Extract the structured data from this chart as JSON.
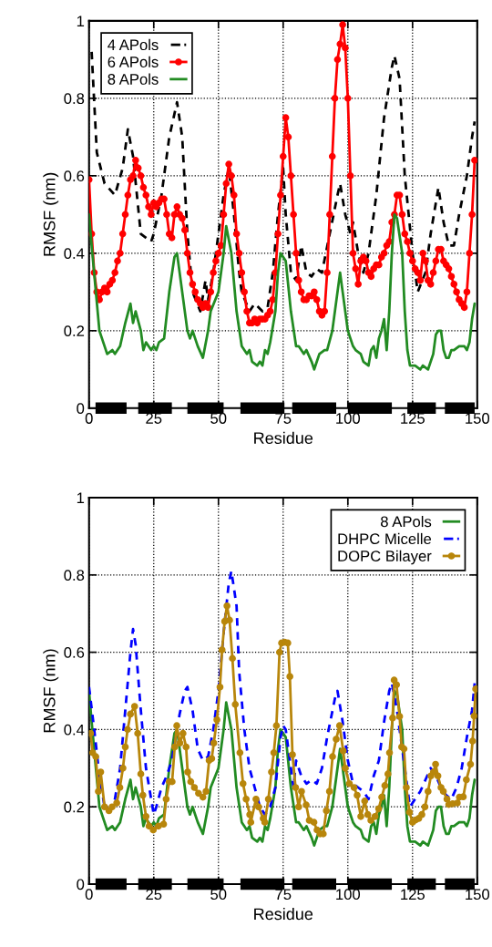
{
  "chart_data": [
    {
      "type": "line",
      "xlabel": "Residue",
      "ylabel": "RMSF (nm)",
      "xlim": [
        0,
        150
      ],
      "ylim": [
        0,
        1
      ],
      "xticks": [
        0,
        25,
        50,
        75,
        100,
        125,
        150
      ],
      "yticks": [
        0,
        0.2,
        0.4,
        0.6,
        0.8,
        1
      ],
      "grid": true,
      "legend": "top left",
      "series": [
        {
          "color": "#000000",
          "line_style": "solid",
          "marker": "none",
          "x": [
            2.5,
            14.5,
            16,
            19,
            32,
            35,
            38,
            52,
            55,
            58.5,
            75.5,
            77,
            78.5,
            95.5,
            98,
            100,
            117,
            120,
            123,
            134,
            136,
            137.5,
            149
          ],
          "values": [
            0,
            0,
            null,
            0,
            0,
            null,
            0,
            0,
            null,
            0,
            0,
            null,
            0,
            0,
            null,
            0,
            0,
            null,
            0,
            0,
            null,
            0,
            0
          ]
        },
        {
          "name": "4 APols",
          "color": "#000000",
          "line_style": "dashed",
          "marker": "none",
          "x": [
            1,
            3,
            6,
            10,
            13,
            15,
            17,
            20,
            24,
            25,
            28,
            31,
            34,
            36,
            38,
            40,
            43,
            45,
            46,
            48,
            50,
            52,
            54,
            56,
            58,
            59,
            62,
            64,
            67,
            69,
            71,
            73,
            75,
            76,
            78,
            80,
            82,
            84,
            86,
            88,
            90,
            93,
            96,
            97,
            99,
            101,
            102,
            104,
            106,
            108,
            111,
            114,
            117,
            118,
            120,
            122,
            125,
            127,
            130,
            132,
            135,
            137,
            139,
            141,
            143,
            146,
            148,
            149
          ],
          "values": [
            0.92,
            0.66,
            0.58,
            0.55,
            0.62,
            0.72,
            0.65,
            0.45,
            0.43,
            0.45,
            0.55,
            0.7,
            0.79,
            0.7,
            0.45,
            0.3,
            0.25,
            0.33,
            0.28,
            0.35,
            0.45,
            0.55,
            0.62,
            0.5,
            0.35,
            0.3,
            0.25,
            0.27,
            0.25,
            0.26,
            0.35,
            0.5,
            0.62,
            0.5,
            0.35,
            0.33,
            0.42,
            0.35,
            0.34,
            0.36,
            0.35,
            0.45,
            0.55,
            0.58,
            0.5,
            0.45,
            0.48,
            0.4,
            0.35,
            0.4,
            0.55,
            0.75,
            0.88,
            0.91,
            0.85,
            0.6,
            0.4,
            0.3,
            0.35,
            0.45,
            0.57,
            0.48,
            0.42,
            0.42,
            0.5,
            0.6,
            0.7,
            0.74
          ]
        },
        {
          "name": "6 APols",
          "color": "#ff0000",
          "line_style": "solid",
          "marker": "circle",
          "x": [
            0,
            1,
            2,
            3,
            4,
            5,
            6,
            7,
            8,
            9,
            10,
            11,
            12,
            13,
            14,
            15,
            16,
            17,
            18,
            19,
            20,
            21,
            22,
            23,
            24,
            25,
            26,
            27,
            28,
            29,
            30,
            31,
            32,
            33,
            34,
            35,
            36,
            37,
            38,
            39,
            40,
            41,
            42,
            43,
            44,
            45,
            46,
            47,
            48,
            49,
            50,
            51,
            52,
            53,
            54,
            55,
            56,
            57,
            58,
            59,
            60,
            61,
            62,
            63,
            64,
            65,
            66,
            67,
            68,
            69,
            70,
            71,
            72,
            73,
            74,
            75,
            76,
            77,
            78,
            79,
            80,
            81,
            82,
            83,
            84,
            85,
            86,
            87,
            88,
            89,
            90,
            91,
            92,
            93,
            94,
            95,
            96,
            97,
            98,
            99,
            100,
            101,
            102,
            103,
            104,
            105,
            106,
            107,
            108,
            109,
            110,
            111,
            112,
            113,
            114,
            115,
            116,
            117,
            118,
            119,
            120,
            121,
            122,
            123,
            124,
            125,
            126,
            127,
            128,
            129,
            130,
            131,
            132,
            133,
            134,
            135,
            136,
            137,
            138,
            139,
            140,
            141,
            142,
            143,
            144,
            145,
            146,
            147,
            148,
            149
          ],
          "values": [
            0.59,
            0.45,
            0.35,
            0.3,
            0.28,
            0.3,
            0.31,
            0.3,
            0.32,
            0.33,
            0.35,
            0.38,
            0.4,
            0.45,
            0.5,
            0.55,
            0.59,
            0.6,
            0.64,
            0.62,
            0.6,
            0.57,
            0.55,
            0.52,
            0.5,
            0.53,
            0.52,
            0.53,
            0.54,
            0.54,
            0.5,
            0.45,
            0.44,
            0.5,
            0.52,
            0.5,
            0.49,
            0.46,
            0.4,
            0.35,
            0.32,
            0.3,
            0.28,
            0.27,
            0.26,
            0.27,
            0.26,
            0.3,
            0.35,
            0.38,
            0.4,
            0.42,
            0.5,
            0.58,
            0.63,
            0.6,
            0.55,
            0.45,
            0.4,
            0.35,
            0.3,
            0.25,
            0.22,
            0.22,
            0.23,
            0.22,
            0.23,
            0.23,
            0.23,
            0.24,
            0.25,
            0.28,
            0.35,
            0.45,
            0.55,
            0.65,
            0.75,
            0.7,
            0.6,
            0.5,
            0.4,
            0.33,
            0.3,
            0.28,
            0.28,
            0.29,
            0.29,
            0.3,
            0.28,
            0.25,
            0.24,
            0.25,
            0.35,
            0.5,
            0.65,
            0.8,
            0.9,
            0.94,
            0.99,
            0.93,
            0.8,
            0.6,
            0.4,
            0.36,
            0.32,
            0.38,
            0.39,
            0.38,
            0.35,
            0.34,
            0.36,
            0.37,
            0.37,
            0.39,
            0.4,
            0.42,
            0.43,
            0.48,
            0.5,
            0.55,
            0.55,
            0.5,
            0.45,
            0.43,
            0.4,
            0.38,
            0.36,
            0.35,
            0.33,
            0.4,
            0.38,
            0.33,
            0.32,
            0.35,
            0.38,
            0.41,
            0.41,
            0.38,
            0.37,
            0.36,
            0.34,
            0.32,
            0.3,
            0.28,
            0.27,
            0.26,
            0.3,
            0.4,
            0.5,
            0.64
          ]
        },
        {
          "name": "8 APols",
          "color": "#228b22",
          "line_style": "solid",
          "marker": "none",
          "x": [
            0,
            1,
            4,
            7,
            9,
            10,
            12,
            14,
            16,
            17,
            18,
            20,
            21,
            22,
            24,
            25,
            26,
            27,
            29,
            31,
            33,
            34,
            36,
            38,
            39,
            40,
            42,
            44,
            46,
            47,
            50,
            52,
            53,
            55,
            57,
            59,
            61,
            62,
            63,
            65,
            66,
            67,
            68,
            69,
            70,
            72,
            73,
            74,
            76,
            78,
            80,
            81,
            83,
            84,
            86,
            87,
            88,
            89,
            91,
            92,
            94,
            96,
            97,
            98,
            100,
            102,
            103,
            105,
            106,
            108,
            109,
            110,
            111,
            112,
            113,
            114,
            115,
            116,
            117,
            118,
            119,
            121,
            122,
            123,
            124,
            126,
            128,
            129,
            131,
            133,
            134,
            135,
            136,
            137,
            138,
            139,
            140,
            141,
            143,
            145,
            146,
            147,
            148,
            149
          ],
          "values": [
            0.5,
            0.42,
            0.2,
            0.14,
            0.15,
            0.14,
            0.16,
            0.22,
            0.27,
            0.22,
            0.25,
            0.2,
            0.15,
            0.17,
            0.15,
            0.16,
            0.15,
            0.17,
            0.18,
            0.3,
            0.39,
            0.4,
            0.3,
            0.2,
            0.18,
            0.2,
            0.16,
            0.13,
            0.2,
            0.25,
            0.3,
            0.4,
            0.47,
            0.4,
            0.25,
            0.16,
            0.14,
            0.15,
            0.12,
            0.11,
            0.12,
            0.11,
            0.15,
            0.14,
            0.17,
            0.25,
            0.35,
            0.4,
            0.38,
            0.25,
            0.16,
            0.16,
            0.14,
            0.15,
            0.12,
            0.1,
            0.12,
            0.14,
            0.15,
            0.15,
            0.2,
            0.3,
            0.35,
            0.3,
            0.2,
            0.16,
            0.15,
            0.14,
            0.12,
            0.11,
            0.15,
            0.16,
            0.13,
            0.18,
            0.2,
            0.23,
            0.15,
            0.25,
            0.4,
            0.5,
            0.49,
            0.4,
            0.25,
            0.15,
            0.11,
            0.11,
            0.1,
            0.11,
            0.1,
            0.14,
            0.19,
            0.2,
            0.2,
            0.15,
            0.13,
            0.13,
            0.15,
            0.15,
            0.16,
            0.16,
            0.15,
            0.17,
            0.23,
            0.27
          ]
        }
      ]
    },
    {
      "type": "line",
      "xlabel": "Residue",
      "ylabel": "RMSF (nm)",
      "xlim": [
        0,
        150
      ],
      "ylim": [
        0,
        1
      ],
      "xticks": [
        0,
        25,
        50,
        75,
        100,
        125,
        150
      ],
      "yticks": [
        0,
        0.2,
        0.4,
        0.6,
        0.8,
        1
      ],
      "grid": true,
      "legend": "top right",
      "series": [
        {
          "color": "#000000",
          "line_style": "solid",
          "marker": "none",
          "x": [
            2.5,
            14.5,
            16,
            19,
            32,
            35,
            38,
            52,
            55,
            58.5,
            75.5,
            77,
            78.5,
            95.5,
            98,
            100,
            117,
            120,
            123,
            134,
            136,
            137.5,
            149
          ],
          "values": [
            0,
            0,
            null,
            0,
            0,
            null,
            0,
            0,
            null,
            0,
            0,
            null,
            0,
            0,
            null,
            0,
            0,
            null,
            0,
            0,
            null,
            0,
            0
          ]
        },
        {
          "name": "8 APols",
          "color": "#228b22",
          "line_style": "solid",
          "marker": "none",
          "x": [
            0,
            1,
            4,
            7,
            9,
            10,
            12,
            14,
            16,
            17,
            18,
            20,
            21,
            22,
            24,
            25,
            26,
            27,
            29,
            31,
            33,
            34,
            36,
            38,
            39,
            40,
            42,
            44,
            46,
            47,
            50,
            52,
            53,
            55,
            57,
            59,
            61,
            62,
            63,
            65,
            66,
            67,
            68,
            69,
            70,
            72,
            73,
            74,
            76,
            78,
            80,
            81,
            83,
            84,
            86,
            87,
            88,
            89,
            91,
            92,
            94,
            96,
            97,
            98,
            100,
            102,
            103,
            105,
            106,
            108,
            109,
            110,
            111,
            112,
            113,
            114,
            115,
            116,
            117,
            118,
            119,
            121,
            122,
            123,
            124,
            126,
            128,
            129,
            131,
            133,
            134,
            135,
            136,
            137,
            138,
            139,
            140,
            141,
            143,
            145,
            146,
            147,
            148,
            149
          ],
          "values": [
            0.5,
            0.42,
            0.2,
            0.14,
            0.15,
            0.14,
            0.16,
            0.22,
            0.27,
            0.22,
            0.25,
            0.2,
            0.15,
            0.17,
            0.15,
            0.16,
            0.15,
            0.17,
            0.18,
            0.3,
            0.39,
            0.4,
            0.3,
            0.2,
            0.18,
            0.2,
            0.16,
            0.13,
            0.2,
            0.25,
            0.3,
            0.4,
            0.47,
            0.4,
            0.25,
            0.16,
            0.14,
            0.15,
            0.12,
            0.11,
            0.12,
            0.11,
            0.15,
            0.14,
            0.17,
            0.25,
            0.35,
            0.4,
            0.38,
            0.25,
            0.16,
            0.16,
            0.14,
            0.15,
            0.12,
            0.1,
            0.12,
            0.14,
            0.15,
            0.15,
            0.2,
            0.3,
            0.35,
            0.3,
            0.2,
            0.16,
            0.15,
            0.14,
            0.12,
            0.11,
            0.15,
            0.16,
            0.13,
            0.18,
            0.2,
            0.23,
            0.15,
            0.25,
            0.4,
            0.5,
            0.49,
            0.4,
            0.25,
            0.15,
            0.11,
            0.11,
            0.1,
            0.11,
            0.1,
            0.14,
            0.19,
            0.2,
            0.2,
            0.15,
            0.13,
            0.13,
            0.15,
            0.15,
            0.16,
            0.16,
            0.15,
            0.17,
            0.23,
            0.27
          ]
        },
        {
          "name": "DHPC Micelle",
          "color": "#0000ff",
          "line_style": "dashed",
          "marker": "none",
          "x": [
            0,
            2,
            4,
            6,
            8,
            10,
            12,
            14,
            16,
            17,
            18,
            20,
            22,
            24,
            25,
            26,
            28,
            30,
            32,
            34,
            35,
            37,
            38,
            40,
            42,
            44,
            46,
            48,
            50,
            52,
            54,
            55,
            57,
            58,
            60,
            62,
            64,
            66,
            68,
            70,
            72,
            74,
            75,
            76,
            78,
            79,
            80,
            82,
            84,
            86,
            88,
            90,
            92,
            95,
            96,
            98,
            100,
            102,
            104,
            106,
            108,
            110,
            112,
            114,
            116,
            117,
            119,
            121,
            123,
            124,
            126,
            128,
            130,
            132,
            134,
            136,
            138,
            140,
            142,
            144,
            146,
            148,
            149
          ],
          "values": [
            0.51,
            0.4,
            0.28,
            0.2,
            0.19,
            0.22,
            0.3,
            0.45,
            0.6,
            0.66,
            0.62,
            0.45,
            0.3,
            0.22,
            0.18,
            0.2,
            0.25,
            0.28,
            0.32,
            0.4,
            0.44,
            0.5,
            0.51,
            0.45,
            0.35,
            0.32,
            0.33,
            0.4,
            0.5,
            0.65,
            0.78,
            0.81,
            0.72,
            0.55,
            0.4,
            0.3,
            0.25,
            0.2,
            0.18,
            0.2,
            0.25,
            0.38,
            0.41,
            0.4,
            0.3,
            0.25,
            0.32,
            0.28,
            0.26,
            0.27,
            0.26,
            0.3,
            0.38,
            0.48,
            0.5,
            0.42,
            0.32,
            0.26,
            0.25,
            0.24,
            0.22,
            0.28,
            0.32,
            0.42,
            0.5,
            0.52,
            0.45,
            0.35,
            0.25,
            0.2,
            0.22,
            0.24,
            0.27,
            0.3,
            0.28,
            0.25,
            0.23,
            0.22,
            0.25,
            0.3,
            0.38,
            0.45,
            0.52
          ]
        },
        {
          "name": "DOPC Bilayer",
          "color": "#b8860b",
          "line_style": "solid",
          "marker": "circle",
          "x": [
            0.6,
            1.4,
            2.6,
            3.6,
            4.5,
            6,
            7.7,
            8.9,
            10.7,
            11.9,
            13.1,
            14,
            14.9,
            16,
            17.6,
            18.8,
            20,
            20.8,
            22,
            23.2,
            24.8,
            26.8,
            28.8,
            29.8,
            31,
            32.1,
            33.1,
            33.9,
            35.1,
            36.3,
            37.5,
            38.1,
            39.3,
            40.7,
            42.3,
            44,
            45.2,
            46.4,
            47.4,
            48.2,
            49.4,
            50.6,
            51.4,
            52.4,
            53.3,
            54.3,
            55.4,
            56.5,
            58.3,
            59.5,
            60.7,
            62.1,
            62.5,
            64.5,
            65.5,
            67.3,
            67.9,
            69.3,
            70.5,
            71.4,
            72.4,
            73.6,
            74.4,
            75.6,
            76.8,
            77.6,
            78.6,
            79.8,
            81,
            82.1,
            83.9,
            85.1,
            86.9,
            88.1,
            89.3,
            90.5,
            91.7,
            92.9,
            94.1,
            95.5,
            96.8,
            98.2,
            99,
            100.6,
            102.4,
            103.6,
            105,
            106.5,
            107.7,
            108.9,
            110.5,
            111.9,
            113.1,
            114.3,
            115.5,
            116.1,
            117.3,
            117.9,
            118.8,
            120,
            120.8,
            121.7,
            122.6,
            123.8,
            125,
            126.2,
            127.4,
            128.6,
            129.8,
            131,
            132.1,
            133.1,
            133.9,
            134.8,
            136,
            136.9,
            138.3,
            139,
            140.5,
            142.3,
            143.1,
            144.6,
            145.8,
            147.4,
            148.2,
            148.8,
            149.4
          ],
          "values": [
            0.39,
            0.34,
            0.33,
            0.24,
            0.29,
            0.2,
            0.19,
            0.2,
            0.21,
            0.25,
            0.3,
            0.355,
            0.4,
            0.44,
            0.46,
            0.39,
            0.285,
            0.23,
            0.175,
            0.15,
            0.14,
            0.15,
            0.155,
            0.22,
            0.265,
            0.265,
            0.355,
            0.41,
            0.365,
            0.39,
            0.355,
            0.29,
            0.265,
            0.25,
            0.235,
            0.225,
            0.24,
            0.32,
            0.325,
            0.365,
            0.425,
            0.51,
            0.606,
            0.68,
            0.72,
            0.683,
            0.584,
            0.465,
            0.34,
            0.26,
            0.22,
            0.18,
            0.16,
            0.22,
            0.2,
            0.17,
            0.16,
            0.22,
            0.29,
            0.34,
            0.41,
            0.6,
            0.624,
            0.626,
            0.624,
            0.537,
            0.335,
            0.25,
            0.2,
            0.24,
            0.205,
            0.165,
            0.16,
            0.14,
            0.13,
            0.13,
            0.19,
            0.24,
            0.33,
            0.375,
            0.41,
            0.345,
            0.3,
            0.26,
            0.25,
            0.23,
            0.175,
            0.215,
            0.18,
            0.165,
            0.175,
            0.195,
            0.225,
            0.255,
            0.285,
            0.34,
            0.43,
            0.528,
            0.516,
            0.434,
            0.355,
            0.35,
            0.25,
            0.186,
            0.16,
            0.166,
            0.17,
            0.18,
            0.2,
            0.24,
            0.28,
            0.29,
            0.31,
            0.28,
            0.25,
            0.24,
            0.22,
            0.206,
            0.208,
            0.21,
            0.225,
            0.226,
            0.27,
            0.31,
            0.37,
            0.435,
            0.505
          ]
        }
      ]
    }
  ]
}
